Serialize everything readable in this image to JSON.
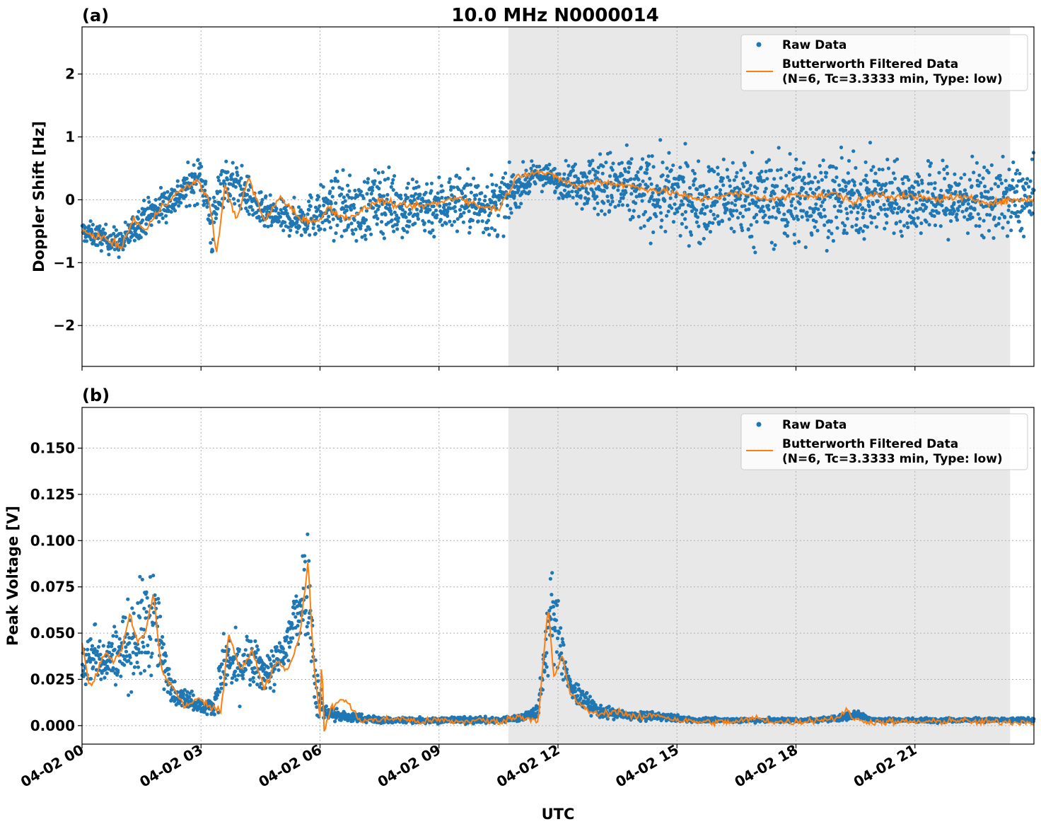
{
  "figure": {
    "title": "10.0 MHz N0000014",
    "xlabel": "UTC",
    "x_tick_labels": [
      "04-02 00",
      "04-02 03",
      "04-02 06",
      "04-02 09",
      "04-02 12",
      "04-02 15",
      "04-02 18",
      "04-02 21"
    ]
  },
  "colors": {
    "raw": "#1f77b4",
    "filtered": "#ff7f0e",
    "shade": "#e8e8e8"
  },
  "chart_data": [
    {
      "type": "scatter",
      "panel_label": "(a)",
      "ylabel": "Doppler Shift [Hz]",
      "xlim_hours": [
        0,
        24
      ],
      "ylim": [
        -2.65,
        2.75
      ],
      "y_ticks": [
        -2,
        -1,
        0,
        1,
        2
      ],
      "y_tick_labels": [
        "−2",
        "−1",
        "0",
        "1",
        "2"
      ],
      "shaded_interval_hours": [
        10.75,
        23.4
      ],
      "grid": true,
      "legend_placement": "top-right",
      "legend": [
        "Raw Data",
        "Butterworth Filtered Data",
        "(N=6, Tc=3.3333 min, Type: low)"
      ],
      "series": [
        {
          "name": "Raw Data",
          "kind": "points",
          "x_hours": [
            0,
            0.5,
            1,
            1.5,
            2,
            2.5,
            3,
            3.3,
            3.5,
            4,
            4.5,
            5,
            5.5,
            6,
            6.5,
            7,
            7.5,
            8,
            8.5,
            9,
            9.5,
            10,
            10.5,
            11,
            11.5,
            12,
            12.5,
            13,
            13.5,
            14,
            14.5,
            15,
            15.5,
            16,
            16.5,
            17,
            17.5,
            18,
            18.5,
            19,
            19.5,
            20,
            20.5,
            21,
            21.5,
            22,
            22.5,
            23,
            23.5,
            24
          ],
          "y_center": [
            -0.5,
            -0.6,
            -0.7,
            -0.3,
            -0.1,
            0.1,
            0.4,
            -0.5,
            0.3,
            0.2,
            -0.2,
            -0.3,
            -0.3,
            -0.2,
            -0.1,
            -0.2,
            0.0,
            -0.1,
            -0.1,
            -0.1,
            0.0,
            -0.1,
            -0.1,
            0.2,
            0.4,
            0.3,
            0.3,
            0.25,
            0.2,
            0.1,
            0.1,
            0.05,
            0.0,
            0.0,
            0.05,
            0.0,
            0.0,
            0.0,
            0.05,
            0.0,
            0.0,
            0.05,
            0.05,
            0.0,
            0.0,
            0.0,
            0.0,
            0.0,
            0.0,
            0.0
          ],
          "y_spread": [
            0.3,
            0.35,
            0.4,
            0.45,
            0.5,
            0.5,
            0.6,
            0.9,
            0.7,
            0.6,
            0.5,
            0.45,
            0.5,
            0.7,
            0.85,
            0.9,
            0.9,
            0.9,
            0.9,
            0.85,
            0.85,
            0.85,
            0.85,
            0.5,
            0.35,
            0.4,
            0.6,
            0.9,
            1.0,
            1.1,
            1.1,
            1.1,
            1.1,
            1.1,
            1.2,
            1.2,
            1.3,
            1.3,
            1.2,
            1.1,
            1.1,
            1.1,
            1.0,
            1.0,
            1.0,
            1.0,
            1.0,
            1.0,
            1.0,
            1.0
          ]
        },
        {
          "name": "Butterworth Filtered Data",
          "kind": "line",
          "x_hours": [
            0,
            0.5,
            1,
            1.3,
            1.6,
            2,
            2.5,
            2.9,
            3.2,
            3.4,
            3.6,
            3.9,
            4.2,
            4.6,
            5,
            5.5,
            6,
            6.2,
            6.6,
            7,
            7.5,
            8,
            8.5,
            9,
            9.5,
            10,
            10.5,
            11,
            11.5,
            12,
            12.5,
            13,
            13.5,
            14,
            14.5,
            15,
            15.5,
            16,
            16.5,
            17,
            17.5,
            18,
            18.5,
            19,
            19.5,
            20,
            20.5,
            21,
            21.5,
            22,
            22.5,
            23,
            23.5,
            24
          ],
          "y": [
            -0.5,
            -0.6,
            -0.75,
            -0.3,
            -0.5,
            -0.1,
            0.15,
            0.3,
            0.0,
            -0.85,
            0.2,
            -0.3,
            0.35,
            -0.35,
            0.05,
            -0.3,
            -0.35,
            -0.1,
            -0.3,
            -0.2,
            0.0,
            -0.1,
            -0.1,
            -0.05,
            0.05,
            -0.1,
            -0.15,
            0.4,
            0.45,
            0.35,
            0.2,
            0.3,
            0.25,
            0.2,
            0.15,
            0.1,
            0.0,
            0.05,
            0.1,
            0.05,
            0.0,
            0.1,
            0.05,
            0.1,
            -0.05,
            0.1,
            0.05,
            0.05,
            0.0,
            0.05,
            0.0,
            -0.05,
            0.0,
            0.0
          ]
        }
      ]
    },
    {
      "type": "scatter",
      "panel_label": "(b)",
      "ylabel": "Peak Voltage [V]",
      "xlim_hours": [
        0,
        24
      ],
      "ylim": [
        -0.01,
        0.172
      ],
      "y_ticks": [
        0.0,
        0.025,
        0.05,
        0.075,
        0.1,
        0.125,
        0.15
      ],
      "y_tick_labels": [
        "0.000",
        "0.025",
        "0.050",
        "0.075",
        "0.100",
        "0.125",
        "0.150"
      ],
      "shaded_interval_hours": [
        10.75,
        23.4
      ],
      "grid": true,
      "legend_placement": "top-right",
      "legend": [
        "Raw Data",
        "Butterworth Filtered Data",
        "(N=6, Tc=3.3333 min, Type: low)"
      ],
      "series": [
        {
          "name": "Raw Data",
          "kind": "points",
          "x_hours": [
            0,
            0.3,
            0.6,
            0.9,
            1.2,
            1.5,
            1.8,
            2.1,
            2.4,
            2.7,
            3.0,
            3.3,
            3.6,
            3.9,
            4.2,
            4.5,
            4.8,
            5.1,
            5.4,
            5.7,
            5.9,
            6.1,
            6.5,
            7,
            7.5,
            8,
            8.5,
            9,
            9.5,
            10,
            10.5,
            11,
            11.5,
            11.8,
            12.0,
            12.3,
            12.6,
            13,
            13.5,
            14,
            14.5,
            15,
            15.5,
            16,
            16.5,
            17,
            17.5,
            18,
            18.5,
            19,
            19.5,
            20,
            20.5,
            21,
            21.5,
            22,
            22.5,
            23,
            23.5,
            24
          ],
          "y_center": [
            0.03,
            0.04,
            0.035,
            0.04,
            0.045,
            0.05,
            0.06,
            0.03,
            0.015,
            0.015,
            0.01,
            0.01,
            0.035,
            0.03,
            0.035,
            0.03,
            0.03,
            0.04,
            0.06,
            0.08,
            0.02,
            0.008,
            0.005,
            0.004,
            0.003,
            0.003,
            0.003,
            0.003,
            0.003,
            0.003,
            0.003,
            0.004,
            0.008,
            0.06,
            0.05,
            0.02,
            0.015,
            0.008,
            0.006,
            0.005,
            0.005,
            0.004,
            0.003,
            0.003,
            0.003,
            0.003,
            0.003,
            0.003,
            0.003,
            0.004,
            0.006,
            0.003,
            0.003,
            0.003,
            0.003,
            0.003,
            0.003,
            0.003,
            0.003,
            0.003
          ],
          "y_spread": [
            0.02,
            0.03,
            0.02,
            0.03,
            0.04,
            0.05,
            0.05,
            0.02,
            0.008,
            0.01,
            0.006,
            0.008,
            0.03,
            0.03,
            0.025,
            0.02,
            0.02,
            0.025,
            0.04,
            0.05,
            0.03,
            0.008,
            0.006,
            0.004,
            0.003,
            0.003,
            0.003,
            0.003,
            0.003,
            0.003,
            0.003,
            0.003,
            0.007,
            0.045,
            0.03,
            0.012,
            0.01,
            0.006,
            0.005,
            0.004,
            0.004,
            0.003,
            0.002,
            0.002,
            0.002,
            0.002,
            0.002,
            0.002,
            0.002,
            0.003,
            0.004,
            0.002,
            0.002,
            0.002,
            0.002,
            0.002,
            0.002,
            0.002,
            0.002,
            0.002
          ]
        },
        {
          "name": "Butterworth Filtered Data",
          "kind": "line",
          "x_hours": [
            0,
            0.2,
            0.4,
            0.6,
            0.8,
            1.0,
            1.2,
            1.4,
            1.6,
            1.8,
            2.0,
            2.3,
            2.6,
            2.9,
            3.2,
            3.5,
            3.7,
            4.0,
            4.3,
            4.6,
            4.9,
            5.2,
            5.5,
            5.7,
            5.85,
            6.0,
            6.05,
            6.1,
            6.3,
            6.6,
            7,
            7.5,
            8,
            8.5,
            9,
            9.5,
            10,
            10.5,
            11,
            11.5,
            11.75,
            11.9,
            12.1,
            12.3,
            12.6,
            13,
            13.5,
            14,
            14.5,
            15,
            15.5,
            16,
            16.5,
            17,
            17.5,
            18,
            18.5,
            19,
            19.3,
            19.5,
            20,
            20.5,
            21,
            21.5,
            22,
            22.5,
            23,
            23.5,
            24
          ],
          "y": [
            0.045,
            0.02,
            0.03,
            0.04,
            0.035,
            0.04,
            0.06,
            0.045,
            0.05,
            0.072,
            0.03,
            0.02,
            0.01,
            0.015,
            0.01,
            0.008,
            0.05,
            0.03,
            0.04,
            0.02,
            0.035,
            0.03,
            0.05,
            0.09,
            0.03,
            0.005,
            0.04,
            -0.003,
            0.01,
            0.015,
            0.003,
            0.003,
            0.004,
            0.002,
            0.003,
            0.002,
            0.003,
            0.002,
            0.005,
            0.003,
            0.064,
            0.025,
            0.038,
            0.018,
            0.01,
            0.006,
            0.008,
            0.004,
            0.006,
            0.003,
            0.002,
            0.002,
            0.002,
            0.004,
            0.002,
            0.002,
            0.003,
            0.004,
            0.008,
            0.003,
            0.002,
            0.002,
            0.002,
            0.002,
            0.003,
            0.002,
            0.002,
            0.002,
            0.002
          ]
        }
      ]
    }
  ]
}
